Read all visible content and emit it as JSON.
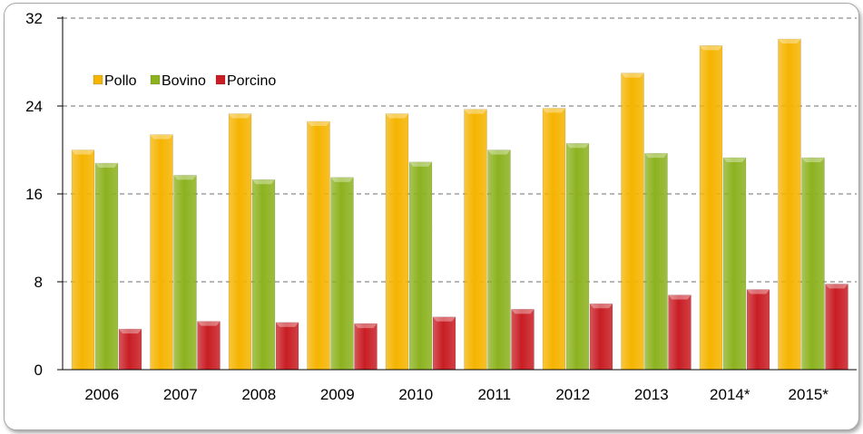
{
  "chart_data": {
    "type": "bar",
    "categories": [
      "2006",
      "2007",
      "2008",
      "2009",
      "2010",
      "2011",
      "2012",
      "2013",
      "2014*",
      "2015*"
    ],
    "series": [
      {
        "name": "Pollo",
        "color": "#f5b400",
        "values": [
          20.0,
          21.4,
          23.3,
          22.6,
          23.3,
          23.7,
          23.8,
          27.0,
          29.5,
          30.1
        ]
      },
      {
        "name": "Bovino",
        "color": "#8cb21f",
        "values": [
          18.8,
          17.7,
          17.3,
          17.5,
          18.9,
          20.0,
          20.6,
          19.7,
          19.3,
          19.3
        ]
      },
      {
        "name": "Porcino",
        "color": "#c81e24",
        "values": [
          3.7,
          4.4,
          4.3,
          4.2,
          4.8,
          5.5,
          6.0,
          6.8,
          7.3,
          7.8
        ]
      }
    ],
    "title": "",
    "xlabel": "",
    "ylabel": "",
    "ylim": [
      0,
      32
    ],
    "yticks": [
      "0",
      "8",
      "16",
      "24",
      "32"
    ],
    "grid": true,
    "legend_position": "top-left"
  }
}
